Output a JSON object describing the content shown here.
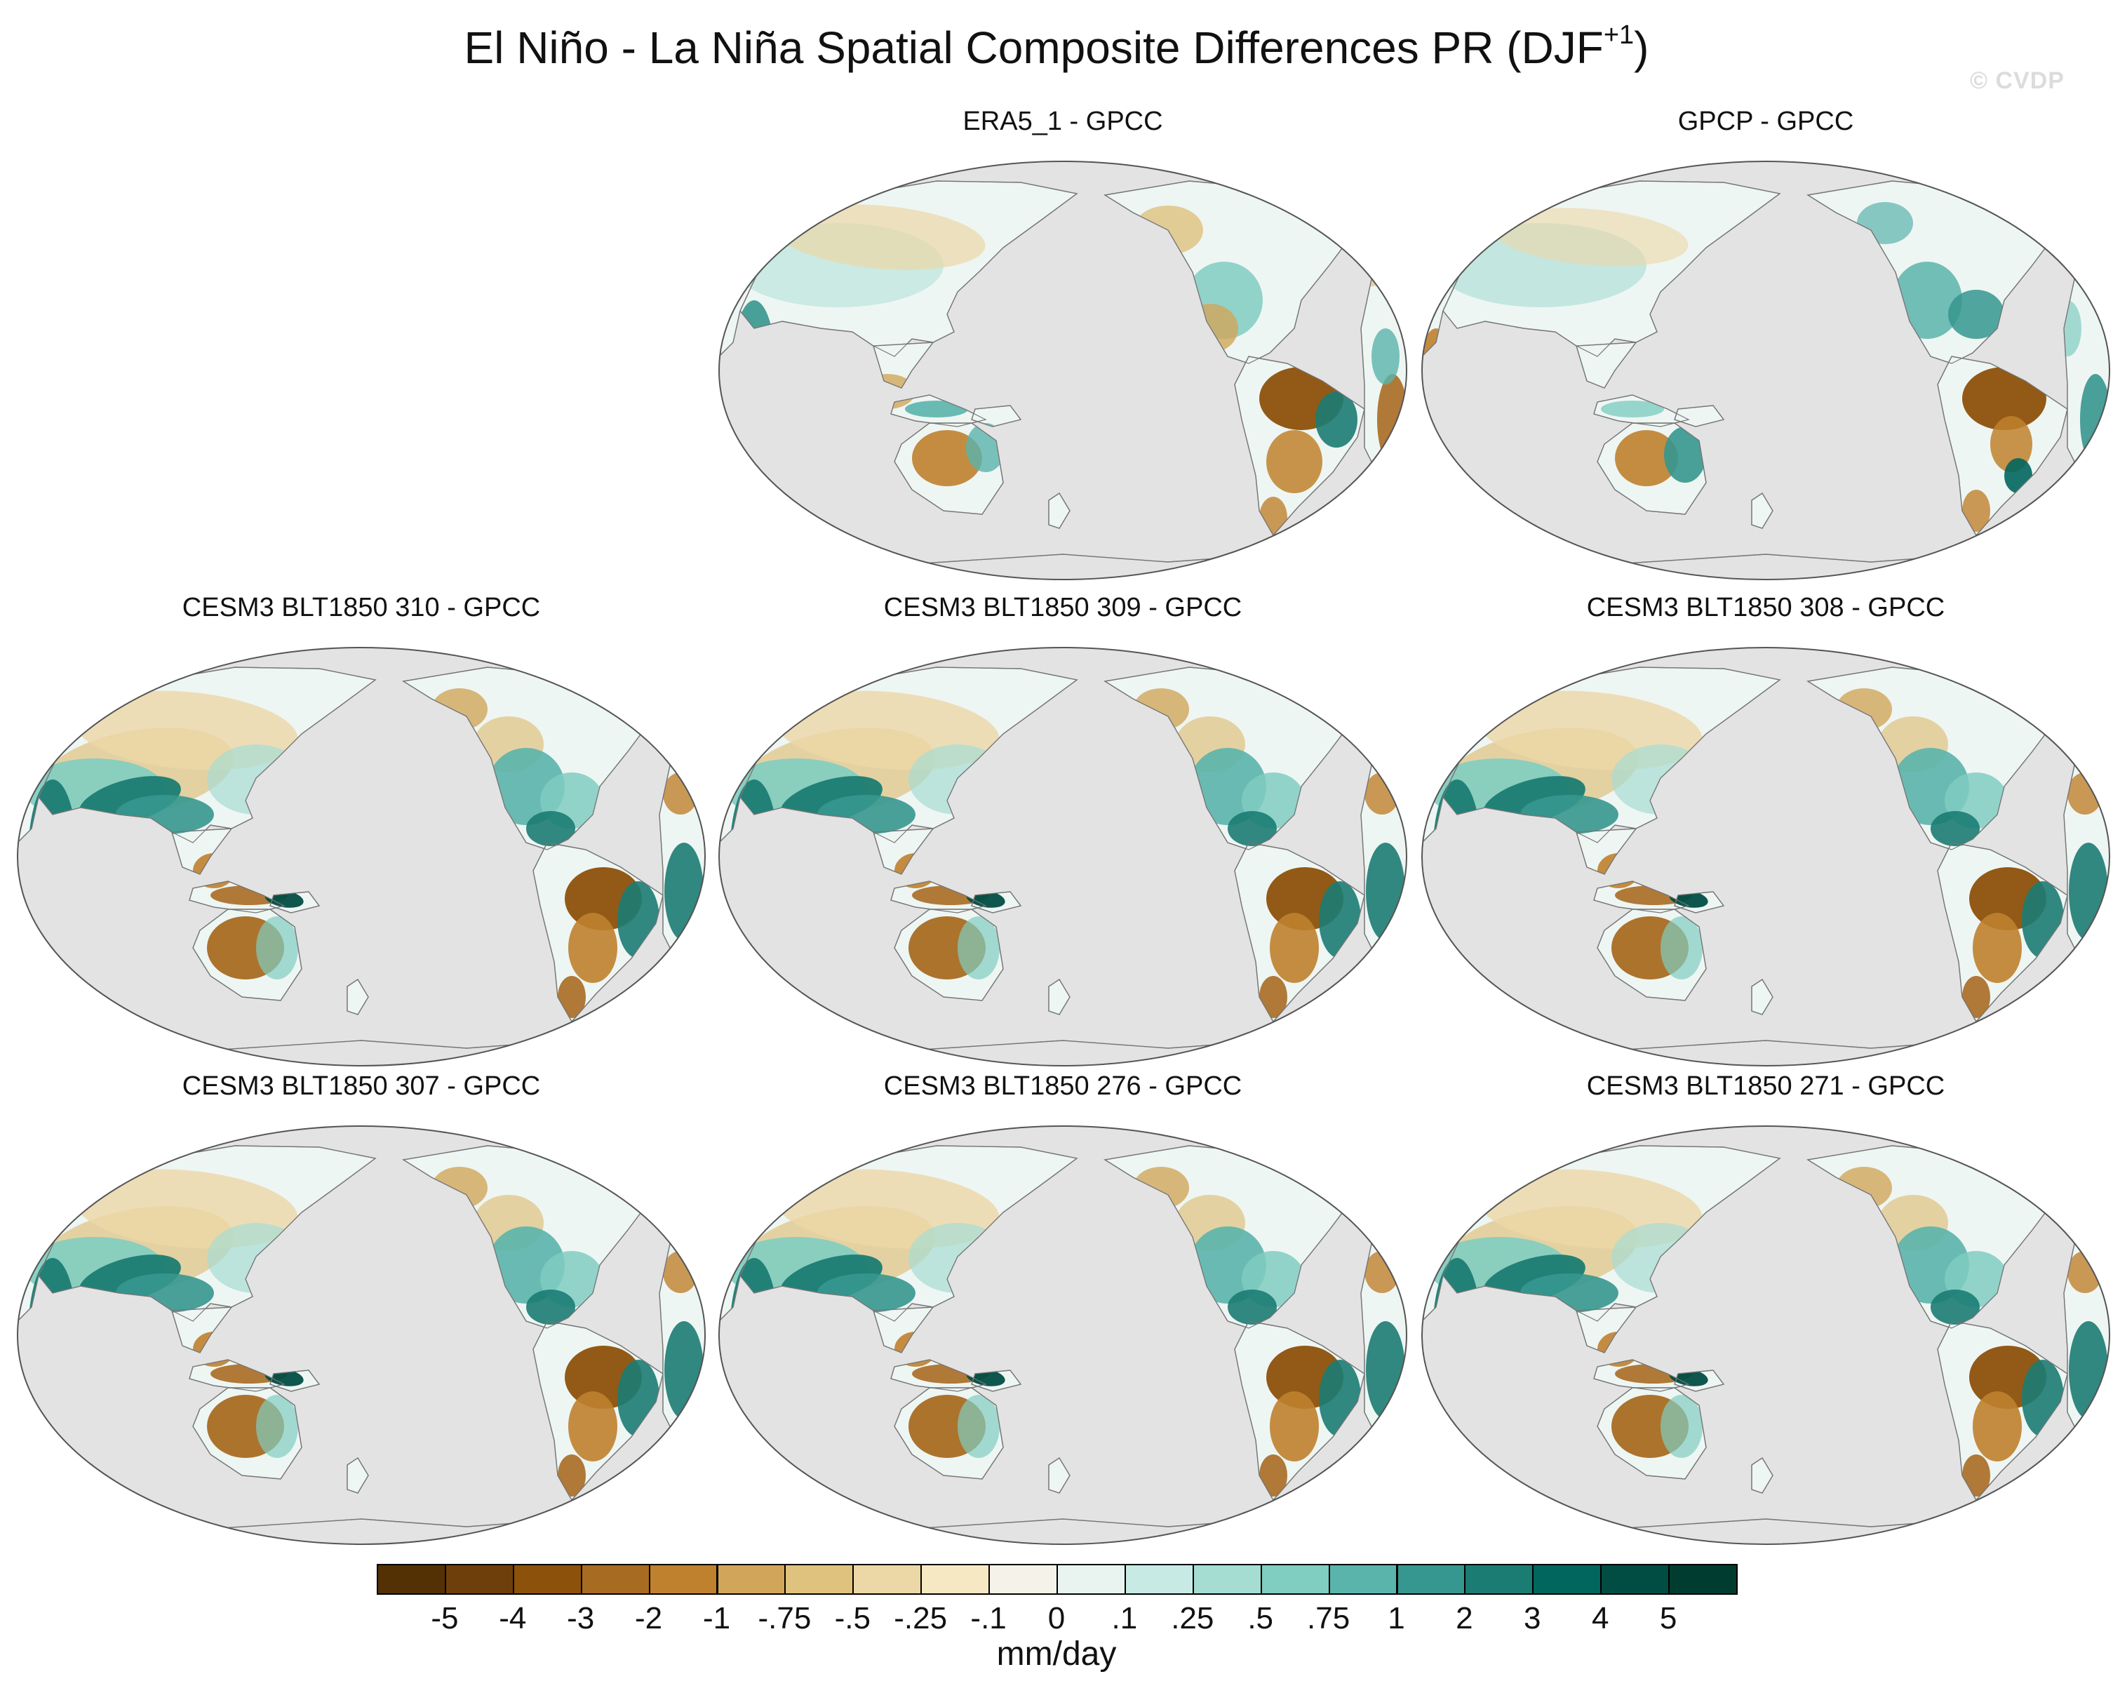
{
  "figure": {
    "title_main": "El Niño - La Niña Spatial Composite Differences PR (DJF",
    "title_sup": "+1",
    "title_close": ")",
    "watermark": "© CVDP",
    "colors": {
      "ocean": "#e3e3e3",
      "coast": "#777777",
      "border": "#555555"
    }
  },
  "panels": [
    {
      "title": "ERA5_1 - GPCC",
      "pattern": "era5"
    },
    {
      "title": "GPCP - GPCC",
      "pattern": "gpcp"
    },
    {
      "title": "CESM3 BLT1850 310 - GPCC",
      "pattern": "model"
    },
    {
      "title": "CESM3 BLT1850 309 - GPCC",
      "pattern": "model"
    },
    {
      "title": "CESM3 BLT1850 308 - GPCC",
      "pattern": "model"
    },
    {
      "title": "CESM3 BLT1850 307 - GPCC",
      "pattern": "model"
    },
    {
      "title": "CESM3 BLT1850 276 - GPCC",
      "pattern": "model"
    },
    {
      "title": "CESM3 BLT1850 271 - GPCC",
      "pattern": "model"
    }
  ],
  "colorbar": {
    "units": "mm/day",
    "labels": [
      "-5",
      "-4",
      "-3",
      "-2",
      "-1",
      "-.75",
      "-.5",
      "-.25",
      "-.1",
      "0",
      ".1",
      ".25",
      ".5",
      ".75",
      "1",
      "2",
      "3",
      "4",
      "5"
    ],
    "colors": [
      "#543005",
      "#6e3f0a",
      "#8c510a",
      "#a86b22",
      "#bf812d",
      "#d1a65b",
      "#dfc27d",
      "#ecd7a7",
      "#f6e8c3",
      "#f5f2ea",
      "#e9f4f1",
      "#c7eae5",
      "#a6ddd3",
      "#80cdc1",
      "#5ab4ac",
      "#35978f",
      "#1b7c73",
      "#01665e",
      "#014d44",
      "#003c30"
    ]
  }
}
